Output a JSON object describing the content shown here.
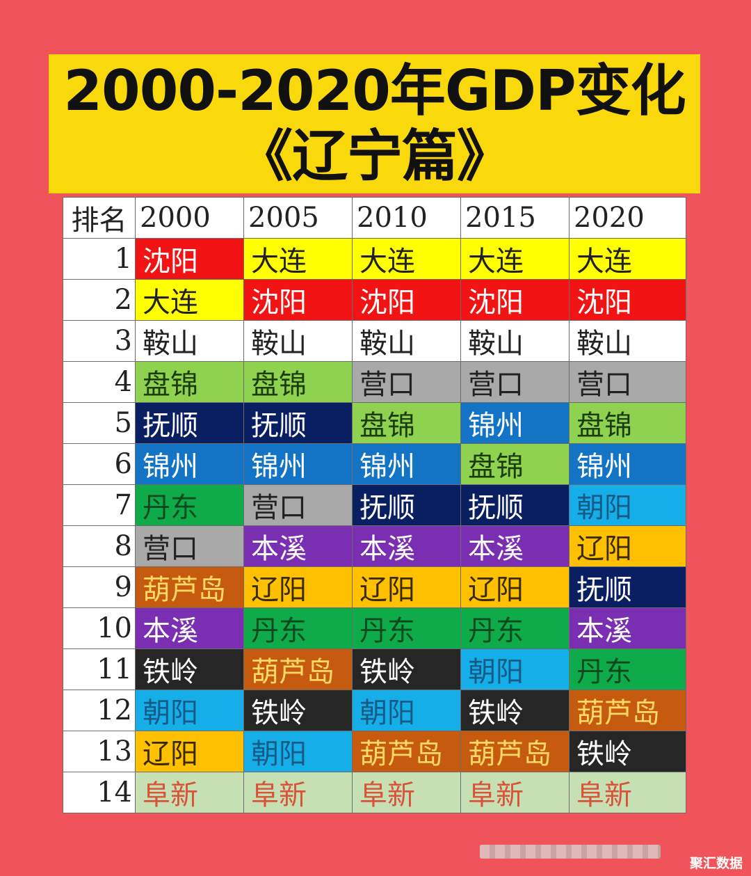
{
  "title": {
    "line1": "2000-2020年GDP变化",
    "line2": "《辽宁篇》"
  },
  "colors": {
    "page_bg": "#f0545a",
    "title_bg": "#fad90c",
    "cities": {
      "沈阳": {
        "bg": "#f21414",
        "fg": "#ffffff"
      },
      "大连": {
        "bg": "#ffff00",
        "fg": "#222222"
      },
      "鞍山": {
        "bg": "#ffffff",
        "fg": "#222222"
      },
      "盘锦": {
        "bg": "#8fd24f",
        "fg": "#1b3d0c"
      },
      "营口": {
        "bg": "#a9a9a9",
        "fg": "#222222"
      },
      "抚顺": {
        "bg": "#0a1f62",
        "fg": "#ffffff"
      },
      "锦州": {
        "bg": "#1374c6",
        "fg": "#ffffff"
      },
      "丹东": {
        "bg": "#0fab4a",
        "fg": "#0b4a1d"
      },
      "朝阳": {
        "bg": "#15aee8",
        "fg": "#155b86"
      },
      "本溪": {
        "bg": "#7a2fb3",
        "fg": "#ffffff"
      },
      "辽阳": {
        "bg": "#ffc000",
        "fg": "#3a2a00"
      },
      "葫芦岛": {
        "bg": "#c65a0f",
        "fg": "#ffd966"
      },
      "铁岭": {
        "bg": "#262626",
        "fg": "#ffffff"
      },
      "阜新": {
        "bg": "#c6e0b4",
        "fg": "#d9523a"
      }
    }
  },
  "chart_data": {
    "type": "table",
    "columns": [
      "排名",
      "2000",
      "2005",
      "2010",
      "2015",
      "2020"
    ],
    "rows": [
      [
        "1",
        "沈阳",
        "大连",
        "大连",
        "大连",
        "大连"
      ],
      [
        "2",
        "大连",
        "沈阳",
        "沈阳",
        "沈阳",
        "沈阳"
      ],
      [
        "3",
        "鞍山",
        "鞍山",
        "鞍山",
        "鞍山",
        "鞍山"
      ],
      [
        "4",
        "盘锦",
        "盘锦",
        "营口",
        "营口",
        "营口"
      ],
      [
        "5",
        "抚顺",
        "抚顺",
        "盘锦",
        "锦州",
        "盘锦"
      ],
      [
        "6",
        "锦州",
        "锦州",
        "锦州",
        "盘锦",
        "锦州"
      ],
      [
        "7",
        "丹东",
        "营口",
        "抚顺",
        "抚顺",
        "朝阳"
      ],
      [
        "8",
        "营口",
        "本溪",
        "本溪",
        "本溪",
        "辽阳"
      ],
      [
        "9",
        "葫芦岛",
        "辽阳",
        "辽阳",
        "辽阳",
        "抚顺"
      ],
      [
        "10",
        "本溪",
        "丹东",
        "丹东",
        "丹东",
        "本溪"
      ],
      [
        "11",
        "铁岭",
        "葫芦岛",
        "铁岭",
        "朝阳",
        "丹东"
      ],
      [
        "12",
        "朝阳",
        "铁岭",
        "朝阳",
        "铁岭",
        "葫芦岛"
      ],
      [
        "13",
        "辽阳",
        "朝阳",
        "葫芦岛",
        "葫芦岛",
        "铁岭"
      ],
      [
        "14",
        "阜新",
        "阜新",
        "阜新",
        "阜新",
        "阜新"
      ]
    ]
  },
  "watermark": "聚汇数据"
}
